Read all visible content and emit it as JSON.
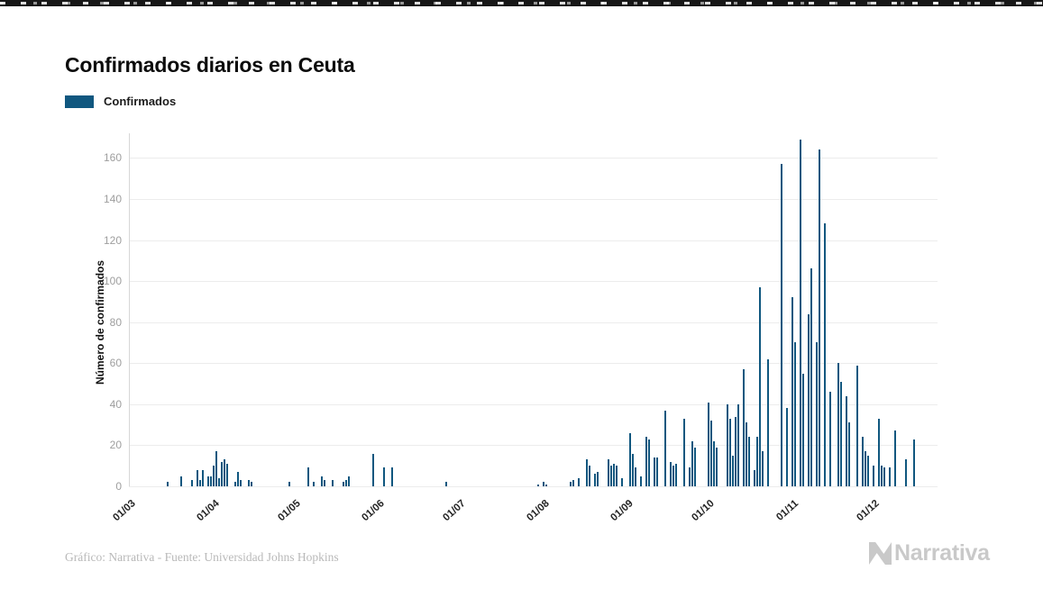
{
  "page": {
    "title": "Confirmados diarios en Ceuta"
  },
  "legend": {
    "label": "Confirmados",
    "swatch_color": "#10577F"
  },
  "footer": {
    "credit": "Gráfico: Narrativa - Fuente: Universidad Johns Hopkins",
    "logo_text": "Narrativa"
  },
  "colors": {
    "bar": "#10577F",
    "grid": "#ececec",
    "axis_line": "#d7d7d7",
    "y_tick_text": "#9e9e9e",
    "x_tick_text": "#262626",
    "top_strip": "#171717"
  },
  "chart_data": {
    "type": "bar",
    "title": "Confirmados diarios en Ceuta",
    "series_name": "Confirmados",
    "xlabel": "",
    "ylabel": "Número de confirmados",
    "ylim": [
      0,
      172
    ],
    "yticks": [
      0,
      20,
      40,
      60,
      80,
      100,
      120,
      140,
      160
    ],
    "grid": true,
    "legend_position": "top-left",
    "x_start": "01/03",
    "x_tick_labels": [
      "01/03",
      "01/04",
      "01/05",
      "01/06",
      "01/07",
      "01/08",
      "01/09",
      "01/10",
      "01/11",
      "01/12"
    ],
    "x_tick_indices": [
      0,
      31,
      61,
      92,
      122,
      153,
      184,
      214,
      245,
      275
    ],
    "total_slots": 299,
    "values": [
      0,
      0,
      0,
      0,
      0,
      0,
      0,
      0,
      0,
      0,
      0,
      0,
      0,
      0,
      2,
      0,
      0,
      0,
      0,
      5,
      0,
      0,
      0,
      3,
      0,
      8,
      3,
      8,
      0,
      5,
      5,
      10,
      17,
      4,
      12,
      13,
      11,
      0,
      0,
      2,
      7,
      3,
      0,
      0,
      3,
      2,
      0,
      0,
      0,
      0,
      0,
      0,
      0,
      0,
      0,
      0,
      0,
      0,
      0,
      2,
      0,
      0,
      0,
      0,
      0,
      0,
      9,
      0,
      2,
      0,
      0,
      5,
      3,
      0,
      0,
      3,
      0,
      0,
      0,
      2,
      3,
      5,
      0,
      0,
      0,
      0,
      0,
      0,
      0,
      0,
      16,
      0,
      0,
      0,
      9,
      0,
      0,
      9,
      0,
      0,
      0,
      0,
      0,
      0,
      0,
      0,
      0,
      0,
      0,
      0,
      0,
      0,
      0,
      0,
      0,
      0,
      0,
      2,
      0,
      0,
      0,
      0,
      0,
      0,
      0,
      0,
      0,
      0,
      0,
      0,
      0,
      0,
      0,
      0,
      0,
      0,
      0,
      0,
      0,
      0,
      0,
      0,
      0,
      0,
      0,
      0,
      0,
      0,
      0,
      0,
      0,
      1,
      0,
      2,
      1,
      0,
      0,
      0,
      0,
      0,
      0,
      0,
      0,
      2,
      3,
      0,
      4,
      0,
      0,
      13,
      10,
      0,
      6,
      7,
      0,
      0,
      0,
      13,
      10,
      11,
      10,
      0,
      4,
      0,
      0,
      26,
      16,
      9,
      0,
      5,
      0,
      24,
      23,
      0,
      14,
      14,
      0,
      0,
      37,
      0,
      12,
      10,
      11,
      0,
      0,
      33,
      0,
      9,
      22,
      19,
      0,
      0,
      0,
      0,
      41,
      32,
      22,
      19,
      0,
      0,
      0,
      40,
      33,
      15,
      34,
      40,
      0,
      57,
      31,
      24,
      0,
      8,
      24,
      97,
      17,
      0,
      62,
      0,
      0,
      0,
      0,
      157,
      0,
      38,
      0,
      92,
      70,
      0,
      169,
      55,
      0,
      84,
      106,
      0,
      70,
      164,
      0,
      128,
      0,
      46,
      0,
      0,
      60,
      51,
      0,
      44,
      31,
      0,
      0,
      59,
      0,
      24,
      17,
      15,
      0,
      10,
      0,
      33,
      10,
      9,
      0,
      9,
      0,
      27,
      0,
      0,
      0,
      13,
      0,
      0,
      23
    ]
  }
}
